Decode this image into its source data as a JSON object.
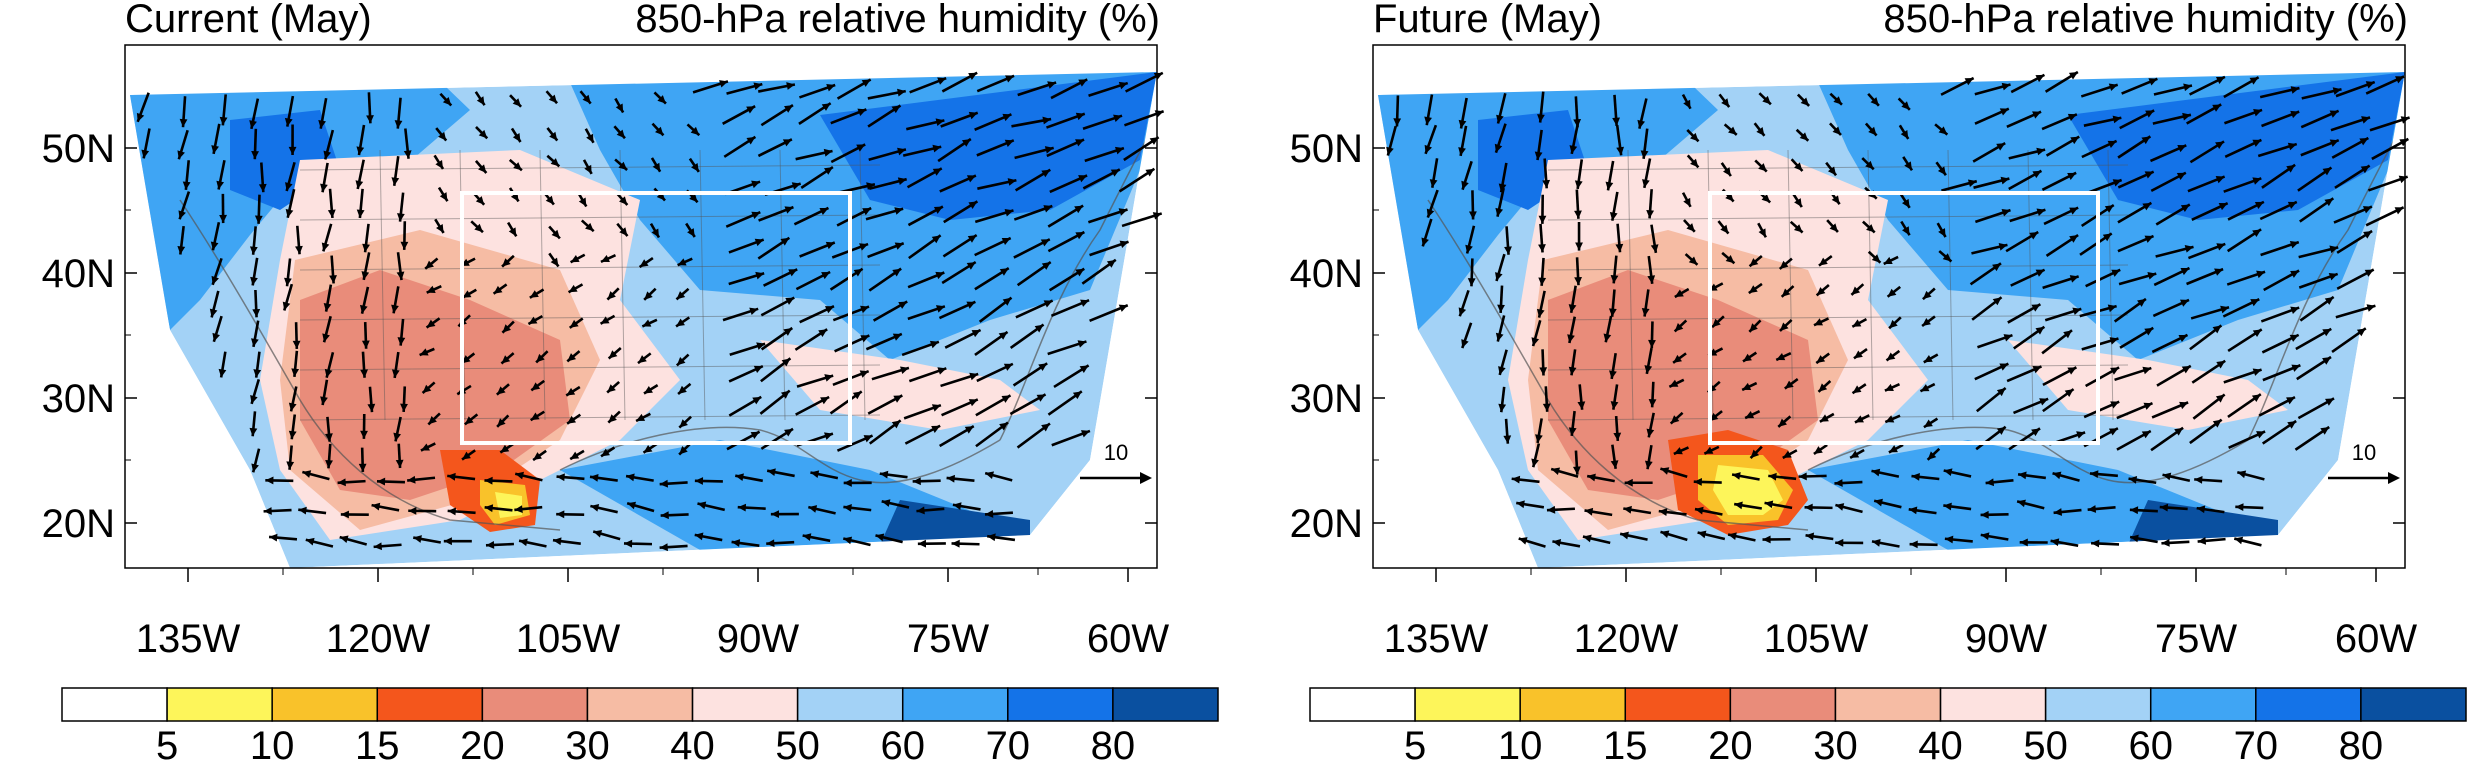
{
  "panels": [
    {
      "id": "left",
      "title_left": "Current (May)",
      "title_right": "850-hPa relative humidity (%)",
      "ref_vector_label": "10"
    },
    {
      "id": "right",
      "title_left": "Future (May)",
      "title_right": "850-hPa relative humidity (%)",
      "ref_vector_label": "10"
    }
  ],
  "axes": {
    "lat_labels": [
      "50N",
      "40N",
      "30N",
      "20N"
    ],
    "lon_labels": [
      "135W",
      "120W",
      "105W",
      "90W",
      "75W",
      "60W"
    ]
  },
  "colorbar": {
    "labels": [
      "5",
      "10",
      "15",
      "20",
      "30",
      "40",
      "50",
      "60",
      "70",
      "80"
    ],
    "colors": [
      "#ffffff",
      "#fdf55a",
      "#f9c22a",
      "#f4561c",
      "#e98c7a",
      "#f6bca4",
      "#fde2e0",
      "#a3d2f6",
      "#3fa5f4",
      "#1473e8",
      "#0a50a0"
    ]
  },
  "map_colors": {
    "very_dry": "#fdf55a",
    "dry_orange": "#f9c22a",
    "red": "#f4561c",
    "salmon": "#e98c7a",
    "peach": "#f6bca4",
    "pink": "#fde2e0",
    "light_blue": "#a3d2f6",
    "mid_blue": "#3fa5f4",
    "blue": "#1473e8",
    "dark_blue": "#0a50a0",
    "box": "#ffffff",
    "coast": "#555555"
  }
}
